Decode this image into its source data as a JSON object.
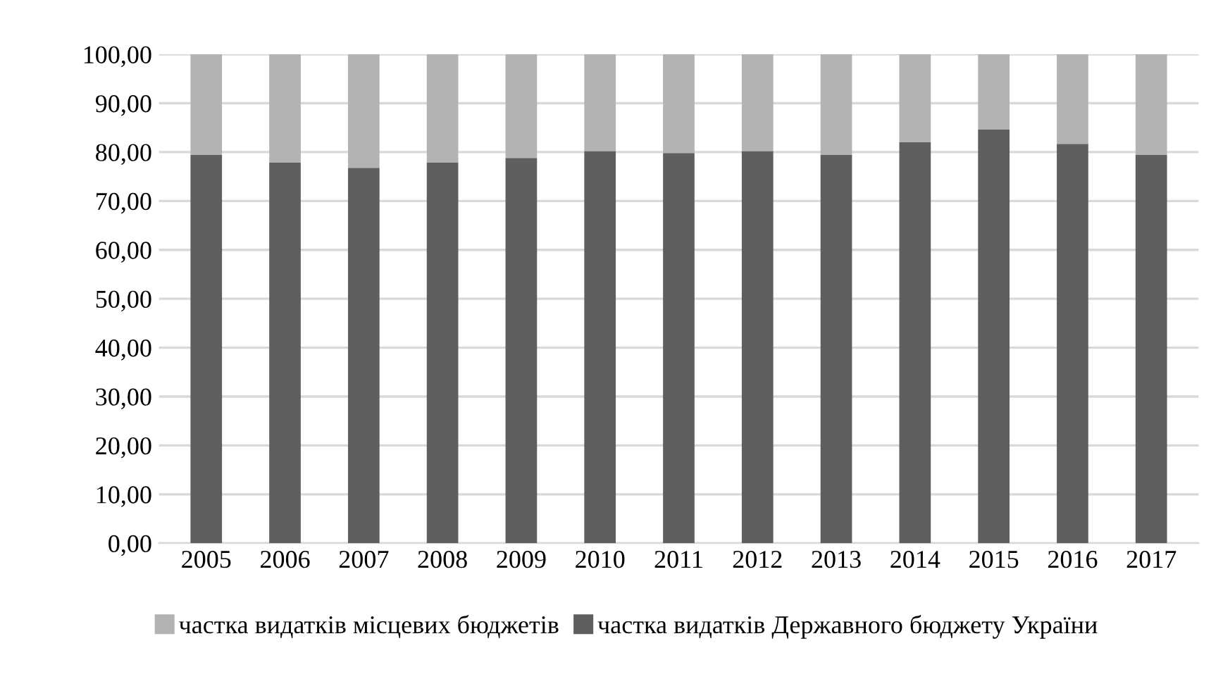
{
  "chart_data": {
    "type": "bar",
    "stacked": true,
    "categories": [
      "2005",
      "2006",
      "2007",
      "2008",
      "2009",
      "2010",
      "2011",
      "2012",
      "2013",
      "2014",
      "2015",
      "2016",
      "2017"
    ],
    "series": [
      {
        "name": "частка видатків Державного бюджету України",
        "color": "#5f5f5f",
        "values": [
          79.4,
          77.9,
          76.8,
          77.9,
          78.8,
          80.2,
          79.8,
          80.2,
          79.4,
          82.0,
          84.6,
          81.7,
          79.4
        ]
      },
      {
        "name": "частка видатків місцевих бюджетів",
        "color": "#b3b3b3",
        "values": [
          20.6,
          22.1,
          23.2,
          22.1,
          21.2,
          19.8,
          20.2,
          19.8,
          20.6,
          18.0,
          15.4,
          18.3,
          20.6
        ]
      }
    ],
    "ylim": [
      0,
      100
    ],
    "yticks": [
      {
        "value": 0,
        "label": "0,00"
      },
      {
        "value": 10,
        "label": "10,00"
      },
      {
        "value": 20,
        "label": "20,00"
      },
      {
        "value": 30,
        "label": "30,00"
      },
      {
        "value": 40,
        "label": "40,00"
      },
      {
        "value": 50,
        "label": "50,00"
      },
      {
        "value": 60,
        "label": "60,00"
      },
      {
        "value": 70,
        "label": "70,00"
      },
      {
        "value": 80,
        "label": "80,00"
      },
      {
        "value": 90,
        "label": "90,00"
      },
      {
        "value": 100,
        "label": "100,00"
      }
    ],
    "grid": "y",
    "legend": "bottom"
  }
}
